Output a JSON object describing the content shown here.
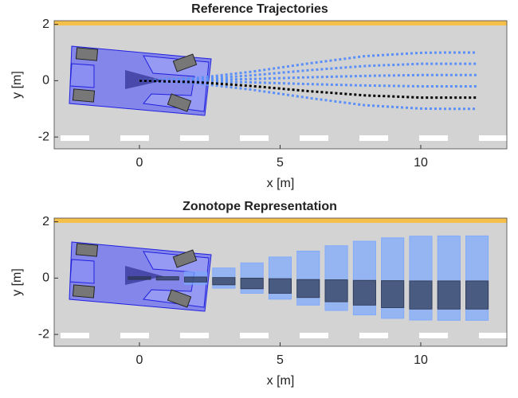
{
  "chart_data": [
    {
      "type": "line",
      "title": "Reference Trajectories",
      "xlabel": "x [m]",
      "ylabel": "y [m]",
      "xlim": [
        -3.03,
        13.06
      ],
      "ylim": [
        -2.42,
        2.13
      ],
      "xticks": [
        0,
        5,
        10
      ],
      "yticks": [
        -2,
        0,
        2
      ],
      "x": [
        0,
        2,
        4,
        6,
        8,
        10,
        11,
        12
      ],
      "series": [
        {
          "color": "#5b8ff9",
          "values": [
            0,
            0.09,
            0.32,
            0.61,
            0.87,
            0.99,
            1,
            1
          ]
        },
        {
          "color": "#5b8ff9",
          "values": [
            0,
            0.05,
            0.19,
            0.37,
            0.52,
            0.6,
            0.6,
            0.6
          ]
        },
        {
          "color": "#5b8ff9",
          "values": [
            0,
            0.02,
            0.06,
            0.12,
            0.17,
            0.2,
            0.2,
            0.2
          ]
        },
        {
          "color": "#5b8ff9",
          "values": [
            0,
            -0.02,
            -0.06,
            -0.12,
            -0.17,
            -0.2,
            -0.2,
            -0.2
          ]
        },
        {
          "color": "#5b8ff9",
          "values": [
            0,
            -0.09,
            -0.32,
            -0.61,
            -0.87,
            -0.99,
            -1,
            -1
          ]
        },
        {
          "color": "#000000",
          "values": [
            0,
            -0.05,
            -0.19,
            -0.37,
            -0.52,
            -0.6,
            -0.6,
            -0.6
          ]
        }
      ]
    },
    {
      "type": "zonotope",
      "title": "Zonotope Representation",
      "xlabel": "x [m]",
      "ylabel": "y [m]",
      "xlim": [
        -3.03,
        13.06
      ],
      "ylim": [
        -2.42,
        2.13
      ],
      "xticks": [
        0,
        5,
        10
      ],
      "yticks": [
        -2,
        0,
        2
      ],
      "x": [
        0,
        1,
        2,
        3,
        4,
        5,
        6,
        7,
        8,
        9,
        10,
        11,
        12
      ],
      "series": [
        {
          "color": "#7aa7ff",
          "lower": [
            null,
            null,
            -0.22,
            -0.36,
            -0.54,
            -0.75,
            -0.96,
            -1.15,
            -1.31,
            -1.43,
            -1.49,
            -1.5,
            -1.5
          ],
          "upper": [
            null,
            null,
            0.22,
            0.36,
            0.54,
            0.75,
            0.96,
            1.15,
            1.31,
            1.43,
            1.49,
            1.5,
            1.5
          ]
        },
        {
          "color": "#2a3550",
          "lower": [
            -0.05,
            -0.07,
            -0.14,
            -0.24,
            -0.38,
            -0.54,
            -0.69,
            -0.84,
            -0.96,
            -1.05,
            -1.1,
            -1.1,
            -1.1
          ],
          "upper": [
            0.05,
            0.05,
            0.04,
            0.02,
            0,
            -0.02,
            -0.05,
            -0.06,
            -0.08,
            -0.09,
            -0.1,
            -0.1,
            -0.1
          ]
        }
      ]
    }
  ]
}
